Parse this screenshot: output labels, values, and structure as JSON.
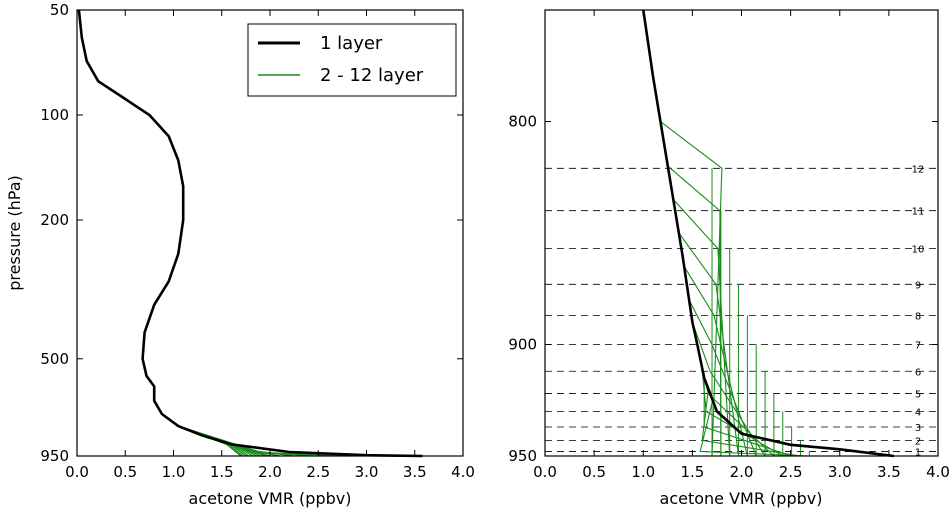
{
  "colors": {
    "one_layer": "#000000",
    "multi_layer": "#1a8c1a",
    "dashed": "#000000"
  },
  "chart_data": [
    {
      "type": "line",
      "title": "",
      "xlabel": "acetone VMR (ppbv)",
      "ylabel": "pressure (hPa)",
      "xlim": [
        0.0,
        4.0
      ],
      "y_scale": "log",
      "ylim": [
        50,
        950
      ],
      "x_tick_labels": [
        "0.0",
        "0.5",
        "1.0",
        "1.5",
        "2.0",
        "2.5",
        "3.0",
        "3.5",
        "4.0"
      ],
      "y_tick_labels": [
        "50",
        "100",
        "200",
        "500",
        "950"
      ],
      "y_ticks": [
        50,
        100,
        200,
        500,
        950
      ],
      "legend": {
        "placement": "top-right",
        "entries": [
          "1 layer",
          "2 - 12 layer"
        ]
      },
      "series": [
        {
          "name": "1 layer",
          "points": [
            [
              0.02,
              50
            ],
            [
              0.05,
              60
            ],
            [
              0.1,
              70
            ],
            [
              0.22,
              80
            ],
            [
              0.5,
              90
            ],
            [
              0.75,
              100
            ],
            [
              0.95,
              115
            ],
            [
              1.05,
              135
            ],
            [
              1.1,
              160
            ],
            [
              1.1,
              200
            ],
            [
              1.05,
              250
            ],
            [
              0.95,
              300
            ],
            [
              0.8,
              350
            ],
            [
              0.7,
              420
            ],
            [
              0.68,
              500
            ],
            [
              0.72,
              560
            ],
            [
              0.8,
              600
            ],
            [
              0.8,
              660
            ],
            [
              0.88,
              720
            ],
            [
              1.05,
              780
            ],
            [
              1.3,
              830
            ],
            [
              1.6,
              880
            ],
            [
              2.2,
              925
            ],
            [
              3.0,
              945
            ],
            [
              3.58,
              950
            ]
          ]
        },
        {
          "name": "2 - 12 layer",
          "endpoints_x": [
            1.7,
            1.72,
            1.75,
            1.78,
            1.82,
            1.86,
            1.9,
            1.95,
            2.0,
            2.1,
            2.25,
            2.45,
            2.8
          ]
        }
      ]
    },
    {
      "type": "line",
      "title": "",
      "xlabel": "acetone VMR (ppbv)",
      "ylabel": "",
      "xlim": [
        0.0,
        4.0
      ],
      "ylim": [
        750,
        950
      ],
      "x_tick_labels": [
        "0.0",
        "0.5",
        "1.0",
        "1.5",
        "2.0",
        "2.5",
        "3.0",
        "3.5",
        "4.0"
      ],
      "y_tick_labels": [
        "800",
        "900",
        "950"
      ],
      "y_ticks": [
        800,
        900,
        950
      ],
      "layer_levels": [
        {
          "label": "12",
          "p": 821
        },
        {
          "label": "11",
          "p": 840
        },
        {
          "label": "10",
          "p": 857
        },
        {
          "label": "9",
          "p": 873
        },
        {
          "label": "8",
          "p": 887
        },
        {
          "label": "7",
          "p": 900
        },
        {
          "label": "6",
          "p": 912
        },
        {
          "label": "5",
          "p": 922
        },
        {
          "label": "4",
          "p": 930
        },
        {
          "label": "3",
          "p": 937
        },
        {
          "label": "2",
          "p": 943
        },
        {
          "label": "1",
          "p": 948
        }
      ],
      "series": [
        {
          "name": "1 layer",
          "points": [
            [
              1.0,
              750
            ],
            [
              1.1,
              780
            ],
            [
              1.25,
              820
            ],
            [
              1.4,
              860
            ],
            [
              1.5,
              890
            ],
            [
              1.55,
              900
            ],
            [
              1.62,
              915
            ],
            [
              1.75,
              930
            ],
            [
              2.0,
              940
            ],
            [
              2.5,
              945
            ],
            [
              3.0,
              947
            ],
            [
              3.55,
              950
            ]
          ]
        },
        {
          "name": "2 - 12 layer",
          "curves": 12
        }
      ]
    }
  ]
}
